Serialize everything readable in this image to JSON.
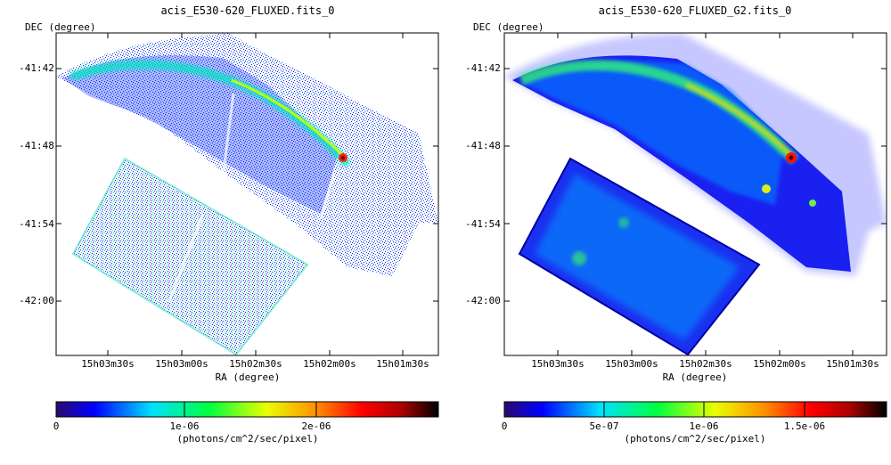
{
  "chart_data": [
    {
      "type": "heatmap",
      "title": "acis_E530-620_FLUXED.fits_0",
      "xlabel": "RA (degree)",
      "ylabel": "DEC (degree)",
      "x_ticks": [
        "15h03m30s",
        "15h03m00s",
        "15h02m30s",
        "15h02m00s",
        "15h01m30s"
      ],
      "y_ticks": [
        "-41:42",
        "-41:48",
        "-41:54",
        "-42:00"
      ],
      "colorbar": {
        "label": "(photons/cm^2/sec/pixel)",
        "ticks": [
          "0",
          "1e-06",
          "2e-06"
        ],
        "tick_values": [
          0,
          1e-06,
          2e-06
        ],
        "range": [
          0,
          2.9e-06
        ],
        "colormap": [
          "#2a0a6e",
          "#0000ff",
          "#00e0ff",
          "#00ff40",
          "#e8ff00",
          "#ff9000",
          "#ff0000",
          "#b00000",
          "#000000"
        ]
      }
    },
    {
      "type": "heatmap",
      "title": "acis_E530-620_FLUXED_G2.fits_0",
      "xlabel": "RA (degree)",
      "ylabel": "DEC (degree)",
      "x_ticks": [
        "15h03m30s",
        "15h03m00s",
        "15h02m30s",
        "15h02m00s",
        "15h01m30s"
      ],
      "y_ticks": [
        "-41:42",
        "-41:48",
        "-41:54",
        "-42:00"
      ],
      "colorbar": {
        "label": "(photons/cm^2/sec/pixel)",
        "ticks": [
          "0",
          "5e-07",
          "1e-06",
          "1.5e-06"
        ],
        "tick_values": [
          0,
          5e-07,
          1e-06,
          1.5e-06
        ],
        "range": [
          0,
          1.9e-06
        ],
        "colormap": [
          "#2a0a6e",
          "#0000ff",
          "#00e0ff",
          "#00ff40",
          "#e8ff00",
          "#ff9000",
          "#ff0000",
          "#b00000",
          "#000000"
        ]
      }
    }
  ]
}
